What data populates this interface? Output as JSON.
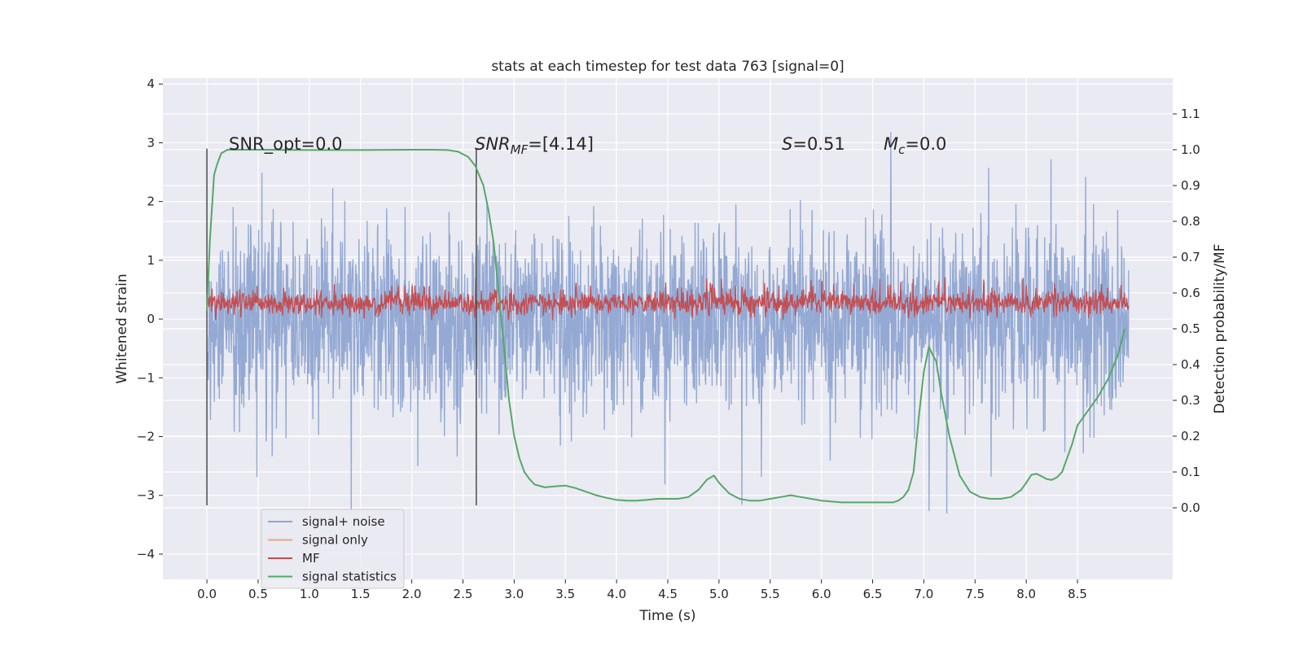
{
  "chart_data": {
    "type": "line",
    "title": "stats at each timestep for test data 763 [signal=0]",
    "xlabel": "Time (s)",
    "ylabel_left": "Whitened strain",
    "ylabel_right": "Detection probability/MF",
    "xlim": [
      -0.43,
      9.43
    ],
    "ylim_left": [
      -4.43,
      4.1
    ],
    "ylim_right": [
      -0.2,
      1.2
    ],
    "x_ticks": [
      "0.0",
      "0.5",
      "1.0",
      "1.5",
      "2.0",
      "2.5",
      "3.0",
      "3.5",
      "4.0",
      "4.5",
      "5.0",
      "5.5",
      "6.0",
      "6.5",
      "7.0",
      "7.5",
      "8.0",
      "8.5"
    ],
    "y_ticks_left": [
      "−4",
      "−3",
      "−2",
      "−1",
      "0",
      "1",
      "2",
      "3",
      "4"
    ],
    "y_ticks_right": [
      "0.0",
      "0.1",
      "0.2",
      "0.3",
      "0.4",
      "0.5",
      "0.6",
      "0.7",
      "0.8",
      "0.9",
      "1.0",
      "1.1"
    ],
    "grid": true,
    "legend_position": "lower-left",
    "annotations": {
      "snr_opt": "SNR_opt=0.0",
      "snr_mf_base": "SNR",
      "snr_mf_sub": "MF",
      "snr_mf_value": "=[4.14]",
      "s_symbol": "S",
      "s_value": "=0.51",
      "mc_symbol": "M",
      "mc_sub": "c",
      "mc_value": "=0.0"
    },
    "vlines_x": [
      0.0,
      2.63
    ],
    "series": [
      {
        "name": "signal+ noise",
        "axis": "left",
        "color": "#8fa5d1",
        "kind": "noise",
        "t_range": [
          0.0,
          9.0
        ],
        "amplitude_range": [
          -4.0,
          3.7
        ]
      },
      {
        "name": "signal only",
        "axis": "left",
        "color": "#e8a487",
        "kind": "flat",
        "values": []
      },
      {
        "name": "MF",
        "axis": "left",
        "color": "#c44e52",
        "kind": "noise",
        "t_range": [
          0.0,
          9.0
        ],
        "amplitude_range": [
          -0.02,
          1.0
        ]
      },
      {
        "name": "signal statistics",
        "axis": "right",
        "color": "#55a868",
        "kind": "curve",
        "x": [
          0.0,
          0.03,
          0.07,
          0.1,
          0.14,
          0.2,
          0.3,
          0.5,
          1.0,
          1.5,
          2.0,
          2.2,
          2.35,
          2.45,
          2.55,
          2.62,
          2.7,
          2.75,
          2.8,
          2.85,
          2.9,
          2.95,
          3.0,
          3.05,
          3.1,
          3.15,
          3.2,
          3.3,
          3.4,
          3.5,
          3.6,
          3.7,
          3.8,
          3.9,
          4.0,
          4.1,
          4.2,
          4.3,
          4.4,
          4.5,
          4.6,
          4.7,
          4.8,
          4.88,
          4.95,
          5.0,
          5.1,
          5.2,
          5.3,
          5.4,
          5.5,
          5.6,
          5.7,
          5.8,
          5.9,
          6.0,
          6.2,
          6.4,
          6.6,
          6.7,
          6.75,
          6.8,
          6.85,
          6.9,
          6.95,
          7.0,
          7.05,
          7.08,
          7.12,
          7.17,
          7.25,
          7.35,
          7.45,
          7.55,
          7.65,
          7.75,
          7.85,
          7.95,
          8.0,
          8.05,
          8.1,
          8.15,
          8.2,
          8.25,
          8.3,
          8.35,
          8.4,
          8.45,
          8.5,
          8.6,
          8.7,
          8.8,
          8.9,
          8.96
        ],
        "y": [
          0.55,
          0.75,
          0.93,
          0.96,
          0.99,
          1.0,
          1.0,
          1.0,
          0.999,
          0.999,
          1.0,
          1.0,
          0.999,
          0.995,
          0.98,
          0.955,
          0.9,
          0.83,
          0.74,
          0.6,
          0.45,
          0.3,
          0.2,
          0.14,
          0.1,
          0.08,
          0.065,
          0.057,
          0.06,
          0.062,
          0.055,
          0.045,
          0.035,
          0.028,
          0.022,
          0.02,
          0.02,
          0.022,
          0.025,
          0.025,
          0.025,
          0.03,
          0.05,
          0.078,
          0.09,
          0.07,
          0.04,
          0.025,
          0.02,
          0.02,
          0.025,
          0.03,
          0.035,
          0.03,
          0.025,
          0.02,
          0.015,
          0.015,
          0.015,
          0.015,
          0.02,
          0.03,
          0.05,
          0.1,
          0.25,
          0.38,
          0.45,
          0.43,
          0.41,
          0.32,
          0.2,
          0.09,
          0.045,
          0.03,
          0.025,
          0.025,
          0.03,
          0.05,
          0.07,
          0.092,
          0.095,
          0.088,
          0.08,
          0.078,
          0.085,
          0.1,
          0.14,
          0.18,
          0.23,
          0.27,
          0.31,
          0.36,
          0.43,
          0.5
        ]
      }
    ]
  }
}
